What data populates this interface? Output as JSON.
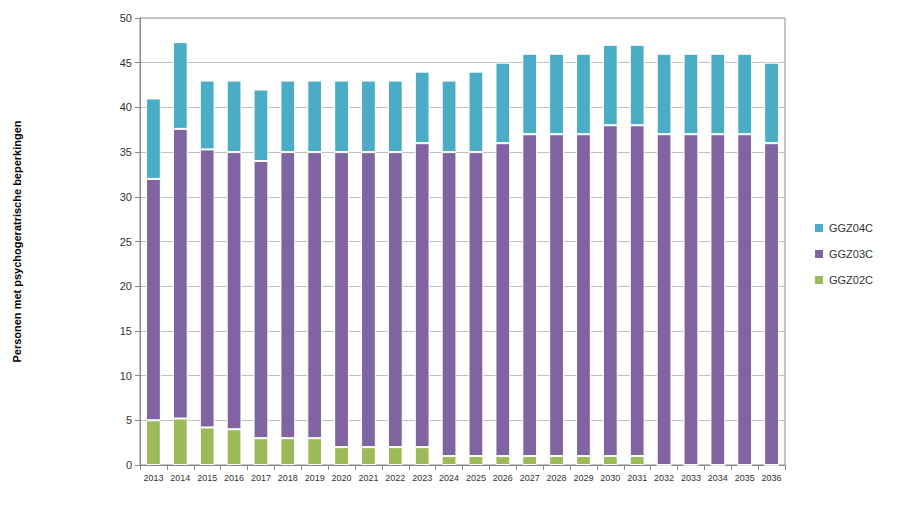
{
  "chart_data": {
    "type": "bar",
    "stacked": true,
    "grid": true,
    "legend": "right",
    "y_label": "Personen met psychogeratrische beperkingen",
    "categories": [
      "2013",
      "2014",
      "2015",
      "2016",
      "2017",
      "2018",
      "2019",
      "2020",
      "2021",
      "2022",
      "2023",
      "2024",
      "2025",
      "2026",
      "2027",
      "2028",
      "2029",
      "2030",
      "2031",
      "2032",
      "2033",
      "2034",
      "2035",
      "2036"
    ],
    "series": [
      {
        "name": "GGZ02C",
        "color": "#9bbb59",
        "values": [
          5,
          5.2,
          4.2,
          4,
          3,
          3,
          3,
          2,
          2,
          2,
          2,
          1,
          1,
          1,
          1,
          1,
          1,
          1,
          1,
          0,
          0,
          0,
          0,
          0
        ]
      },
      {
        "name": "GGZ03C",
        "color": "#8064a2",
        "values": [
          27,
          32.4,
          31.1,
          31,
          31,
          32,
          32,
          33,
          33,
          33,
          34,
          34,
          34,
          35,
          36,
          36,
          36,
          37,
          37,
          37,
          37,
          37,
          37,
          36
        ]
      },
      {
        "name": "GGZ04C",
        "color": "#4bacc6",
        "values": [
          9,
          9.7,
          7.7,
          8,
          8,
          8,
          8,
          8,
          8,
          8,
          8,
          8,
          9,
          9,
          9,
          9,
          9,
          9,
          9,
          9,
          9,
          9,
          9,
          9
        ]
      }
    ],
    "ylim": [
      0,
      50
    ],
    "yticks": [
      0,
      5,
      10,
      15,
      20,
      25,
      30,
      35,
      40,
      45,
      50
    ]
  }
}
